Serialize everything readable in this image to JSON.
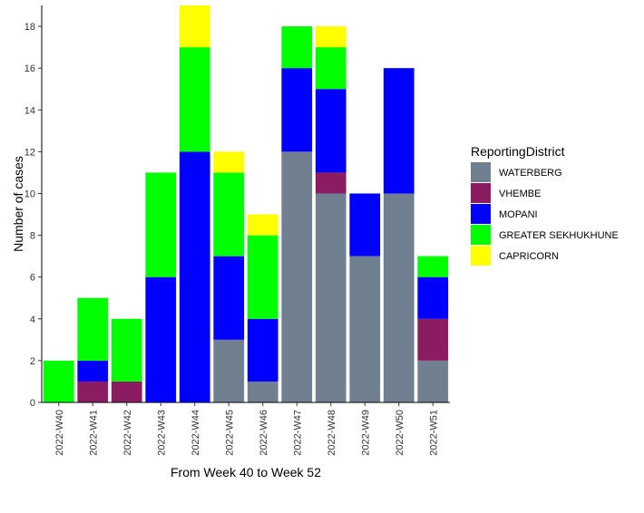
{
  "chart_data": {
    "type": "bar",
    "stacked": true,
    "xlabel": "From Week 40 to Week 52",
    "ylabel": "Number of cases",
    "ylim": [
      0,
      19
    ],
    "yticks": [
      0,
      2,
      4,
      6,
      8,
      10,
      12,
      14,
      16,
      18
    ],
    "grid": false,
    "legend_title": "ReportingDistrict",
    "legend_position": "right",
    "categories": [
      "2022-W40",
      "2022-W41",
      "2022-W42",
      "2022-W43",
      "2022-W44",
      "2022-W45",
      "2022-W46",
      "2022-W47",
      "2022-W48",
      "2022-W49",
      "2022-W50",
      "2022-W51"
    ],
    "series": [
      {
        "name": "WATERBERG",
        "color": "#708090",
        "values": [
          0,
          0,
          0,
          0,
          0,
          3,
          1,
          12,
          10,
          7,
          10,
          2
        ]
      },
      {
        "name": "VHEMBE",
        "color": "#8B1C62",
        "values": [
          0,
          1,
          1,
          0,
          0,
          0,
          0,
          0,
          1,
          0,
          0,
          2
        ]
      },
      {
        "name": "MOPANI",
        "color": "#0000FF",
        "values": [
          0,
          1,
          0,
          6,
          12,
          4,
          3,
          4,
          4,
          3,
          6,
          2
        ]
      },
      {
        "name": "GREATER SEKHUKHUNE",
        "color": "#00FF00",
        "values": [
          2,
          3,
          3,
          5,
          5,
          4,
          4,
          2,
          2,
          0,
          0,
          1
        ]
      },
      {
        "name": "CAPRICORN",
        "color": "#FFFF00",
        "values": [
          0,
          0,
          0,
          0,
          2,
          1,
          1,
          0,
          1,
          0,
          0,
          0
        ]
      }
    ],
    "legend_order": [
      "WATERBERG",
      "VHEMBE",
      "MOPANI",
      "GREATER SEKHUKHUNE",
      "CAPRICORN"
    ]
  }
}
